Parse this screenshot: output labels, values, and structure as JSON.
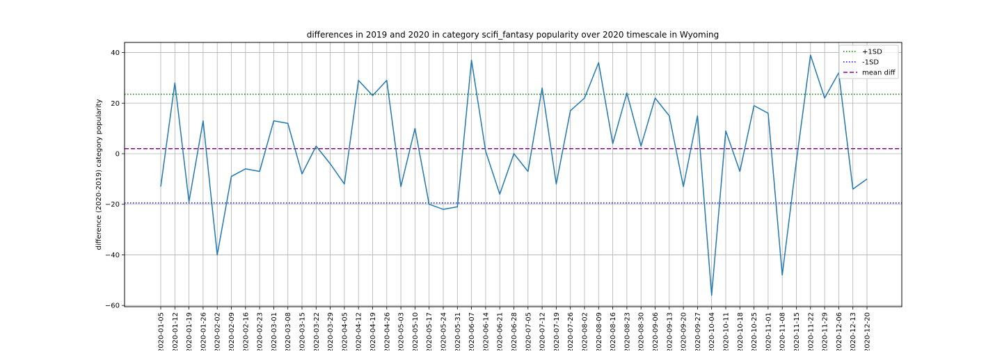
{
  "chart_data": {
    "type": "line",
    "title": "differences in 2019 and 2020 in category scifi_fantasy popularity over 2020 timescale in Wyoming",
    "xlabel": "",
    "ylabel": "difference (2020-2019) category popularity",
    "ylim": [
      -60.5,
      44
    ],
    "yticks": [
      40,
      20,
      0,
      -20,
      -40,
      -60
    ],
    "ytick_labels": [
      "40",
      "20",
      "0",
      "−20",
      "−40",
      "−60"
    ],
    "grid": true,
    "legend_position": "top-right",
    "x": [
      "2020-01-05",
      "2020-01-12",
      "2020-01-19",
      "2020-01-26",
      "2020-02-02",
      "2020-02-09",
      "2020-02-16",
      "2020-02-23",
      "2020-03-01",
      "2020-03-08",
      "2020-03-15",
      "2020-03-22",
      "2020-03-29",
      "2020-04-05",
      "2020-04-12",
      "2020-04-19",
      "2020-04-26",
      "2020-05-03",
      "2020-05-10",
      "2020-05-17",
      "2020-05-24",
      "2020-05-31",
      "2020-06-07",
      "2020-06-14",
      "2020-06-21",
      "2020-06-28",
      "2020-07-05",
      "2020-07-12",
      "2020-07-19",
      "2020-07-26",
      "2020-08-02",
      "2020-08-09",
      "2020-08-16",
      "2020-08-23",
      "2020-08-30",
      "2020-09-06",
      "2020-09-13",
      "2020-09-20",
      "2020-09-27",
      "2020-10-04",
      "2020-10-11",
      "2020-10-18",
      "2020-10-25",
      "2020-11-01",
      "2020-11-08",
      "2020-11-15",
      "2020-11-22",
      "2020-11-29",
      "2020-12-06",
      "2020-12-13",
      "2020-12-20"
    ],
    "series": [
      {
        "values": [
          -13,
          28,
          -19,
          13,
          -40,
          -9,
          -6,
          -7,
          13,
          12,
          -8,
          3,
          -4,
          -12,
          29,
          23,
          29,
          -13,
          10,
          -20,
          -22,
          -21,
          37,
          1,
          -16,
          0,
          -7,
          26,
          -12,
          17,
          22,
          36,
          4,
          24,
          3,
          22,
          15,
          -13,
          15,
          -56,
          9,
          -7,
          19,
          16,
          -48,
          -3,
          39,
          22,
          32,
          -14,
          -10
        ],
        "color": "#1f77b4"
      }
    ],
    "reference_lines": [
      {
        "name": "+1SD",
        "value": 23.5,
        "color": "#008000",
        "style": "dotted"
      },
      {
        "name": "-1SD",
        "value": -19.5,
        "color": "#0000ff",
        "style": "dotted"
      },
      {
        "name": "mean diff",
        "value": 2,
        "color": "#8b008b",
        "style": "dashed"
      }
    ]
  }
}
